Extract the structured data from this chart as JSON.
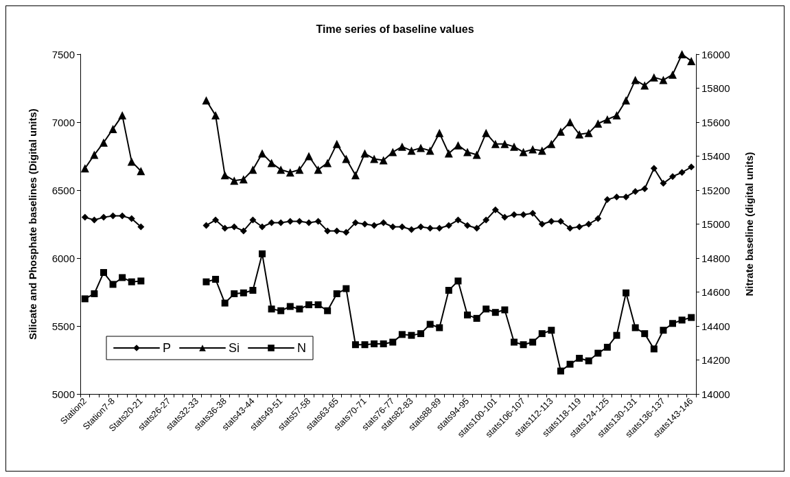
{
  "chart_data": {
    "type": "line",
    "title": "Time series of baseline values",
    "ylabel": "Silicate and Phosphate baselines (Digital units)",
    "y2label": "Nitrate baseline (digital units)",
    "categories": [
      "Station2",
      null,
      null,
      "Station7-8",
      null,
      null,
      "Stats20-21",
      null,
      null,
      "stats26-27",
      null,
      null,
      "stats32-33",
      null,
      null,
      "stats36-38",
      null,
      null,
      "stats43-44",
      null,
      null,
      "stats49-51",
      null,
      null,
      "stats57-58",
      null,
      null,
      "stats63-65",
      null,
      null,
      "stats70-71",
      null,
      null,
      "stats76-77",
      null,
      "stats82-83",
      null,
      null,
      "stats88-89",
      null,
      null,
      "stats94-95",
      null,
      null,
      "stats100-101",
      null,
      null,
      "stats106-107",
      null,
      null,
      "stats112-113",
      null,
      null,
      "stats118-119",
      null,
      null,
      "stats124-125",
      null,
      null,
      "stats130-131",
      null,
      null,
      "stats136-137",
      null,
      null,
      "stats143-146"
    ],
    "series": [
      {
        "name": "P",
        "color": "#000000",
        "marker": "diamond",
        "values": [
          6300,
          6280,
          6300,
          6310,
          6310,
          6290,
          6230,
          null,
          null,
          null,
          null,
          null,
          null,
          6240,
          6280,
          6220,
          6230,
          6200,
          6280,
          6230,
          6260,
          6260,
          6270,
          6270,
          6260,
          6270,
          6200,
          6200,
          6190,
          6260,
          6250,
          6240,
          6260,
          6230,
          6230,
          6210,
          6230,
          6220,
          6220,
          6240,
          6280,
          6240,
          6220,
          6280,
          6355,
          6300,
          6320,
          6320,
          6330,
          6250,
          6270,
          6270,
          6220,
          6230,
          6250,
          6290,
          6430,
          6450,
          6450,
          6490,
          6510,
          6660,
          6550,
          6600,
          6630,
          6670
        ]
      },
      {
        "name": "Si",
        "color": "#000000",
        "marker": "triangle",
        "values": [
          6660,
          6760,
          6850,
          6950,
          7050,
          6710,
          6640,
          null,
          null,
          null,
          null,
          null,
          null,
          7160,
          7050,
          6610,
          6570,
          6580,
          6650,
          6770,
          6700,
          6650,
          6630,
          6650,
          6750,
          6650,
          6700,
          6840,
          6730,
          6610,
          6770,
          6730,
          6720,
          6780,
          6820,
          6790,
          6810,
          6790,
          6920,
          6770,
          6830,
          6780,
          6760,
          6920,
          6840,
          6840,
          6820,
          6780,
          6800,
          6790,
          6840,
          6930,
          7000,
          6910,
          6920,
          6990,
          7020,
          7050,
          7160,
          7310,
          7270,
          7330,
          7310,
          7350,
          7500,
          7450
        ]
      },
      {
        "name": "N",
        "color": "#000000",
        "marker": "square",
        "axis": "y2",
        "values": [
          14560,
          14590,
          14715,
          14645,
          14685,
          14660,
          14665,
          null,
          null,
          null,
          null,
          null,
          null,
          14660,
          14675,
          14535,
          14590,
          14595,
          14610,
          14825,
          14500,
          14490,
          14515,
          14500,
          14525,
          14525,
          14490,
          14590,
          14620,
          14290,
          14290,
          14295,
          14295,
          14305,
          14350,
          14345,
          14355,
          14410,
          14390,
          14610,
          14665,
          14465,
          14445,
          14500,
          14480,
          14495,
          14305,
          14290,
          14305,
          14355,
          14375,
          14135,
          14175,
          14210,
          14195,
          14240,
          14275,
          14345,
          14595,
          14390,
          14355,
          14265,
          14375,
          14415,
          14435,
          14450
        ]
      }
    ],
    "ylim": [
      5000,
      7500
    ],
    "yticks": [
      5000,
      5500,
      6000,
      6500,
      7000,
      7500
    ],
    "y2lim": [
      14000,
      16000
    ],
    "y2ticks": [
      14000,
      14200,
      14400,
      14600,
      14800,
      15000,
      15200,
      15400,
      15600,
      15800,
      16000
    ],
    "grid": false,
    "legend": "bottom left",
    "line_style": "solid"
  }
}
